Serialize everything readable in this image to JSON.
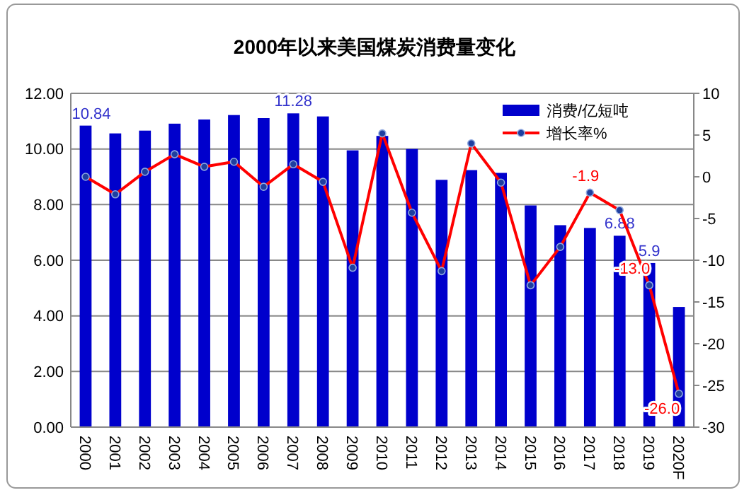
{
  "chart_data": {
    "type": "bar",
    "title": "2000年以来美国煤炭消费量变化",
    "categories": [
      "2000",
      "2001",
      "2002",
      "2003",
      "2004",
      "2005",
      "2006",
      "2007",
      "2008",
      "2009",
      "2010",
      "2011",
      "2012",
      "2013",
      "2014",
      "2015",
      "2016",
      "2017",
      "2018",
      "2019",
      "2020F"
    ],
    "series": [
      {
        "name": "消费/亿短吨",
        "color": "#0000cc",
        "values": [
          10.84,
          10.56,
          10.66,
          10.91,
          11.06,
          11.22,
          11.11,
          11.28,
          11.17,
          9.95,
          10.47,
          10.0,
          8.89,
          9.24,
          9.14,
          7.97,
          7.26,
          7.16,
          6.88,
          5.9,
          4.32
        ],
        "value_labels": [
          "10.84",
          null,
          null,
          null,
          null,
          null,
          null,
          "11.28",
          null,
          null,
          null,
          null,
          null,
          null,
          null,
          null,
          null,
          null,
          "6.88",
          "5.9",
          null
        ]
      },
      {
        "name": "增长率%",
        "type": "line",
        "axis": "y2",
        "color": "#ff0000",
        "marker": "circle",
        "values": [
          0.0,
          -2.1,
          0.6,
          2.7,
          1.2,
          1.8,
          -1.2,
          1.5,
          -0.6,
          -10.9,
          5.2,
          -4.3,
          -11.3,
          4.0,
          -0.7,
          -13.0,
          -8.4,
          -1.9,
          -4.0,
          -13.0,
          -26.0
        ],
        "value_labels": [
          null,
          null,
          null,
          null,
          null,
          null,
          null,
          null,
          null,
          null,
          null,
          null,
          null,
          null,
          null,
          null,
          null,
          "-1.9",
          null,
          "-13.0",
          "-26.0"
        ]
      }
    ],
    "ylim": [
      0,
      12
    ],
    "yticks": [
      {
        "value": 0,
        "label": "0.00"
      },
      {
        "value": 2,
        "label": "2.00"
      },
      {
        "value": 4,
        "label": "4.00"
      },
      {
        "value": 6,
        "label": "6.00"
      },
      {
        "value": 8,
        "label": "8.00"
      },
      {
        "value": 10,
        "label": "10.00"
      },
      {
        "value": 12,
        "label": "12.00"
      }
    ],
    "y2lim": [
      -30,
      10
    ],
    "y2ticks": [
      -30,
      -25,
      -20,
      -15,
      -10,
      -5,
      0,
      5,
      10
    ],
    "grid": "y",
    "legend": "top right"
  }
}
